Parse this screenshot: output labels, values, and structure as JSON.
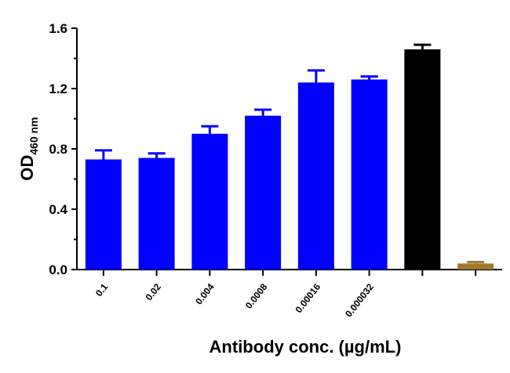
{
  "chart_data": {
    "type": "bar",
    "title": "",
    "xlabel": "Antibody conc. (µg/mL)",
    "ylabel": {
      "main": "OD",
      "subscript": "460 nm"
    },
    "ylim": [
      0,
      1.6
    ],
    "yticks": [
      "0.0",
      "0.4",
      "0.8",
      "1.2",
      "1.6"
    ],
    "ytick_values": [
      0.0,
      0.4,
      0.8,
      1.2,
      1.6
    ],
    "grid": false,
    "legend": "none",
    "categories": [
      "0.1",
      "0.02",
      "0.004",
      "0.0008",
      "0.00016",
      "0.000032",
      "",
      ""
    ],
    "values": [
      0.73,
      0.74,
      0.9,
      1.02,
      1.24,
      1.26,
      1.46,
      0.04
    ],
    "errors": [
      0.06,
      0.03,
      0.05,
      0.04,
      0.08,
      0.02,
      0.03,
      0.01
    ],
    "colors": [
      "#0000ff",
      "#0000ff",
      "#0000ff",
      "#0000ff",
      "#0000ff",
      "#0000ff",
      "#000000",
      "#a07830"
    ]
  }
}
